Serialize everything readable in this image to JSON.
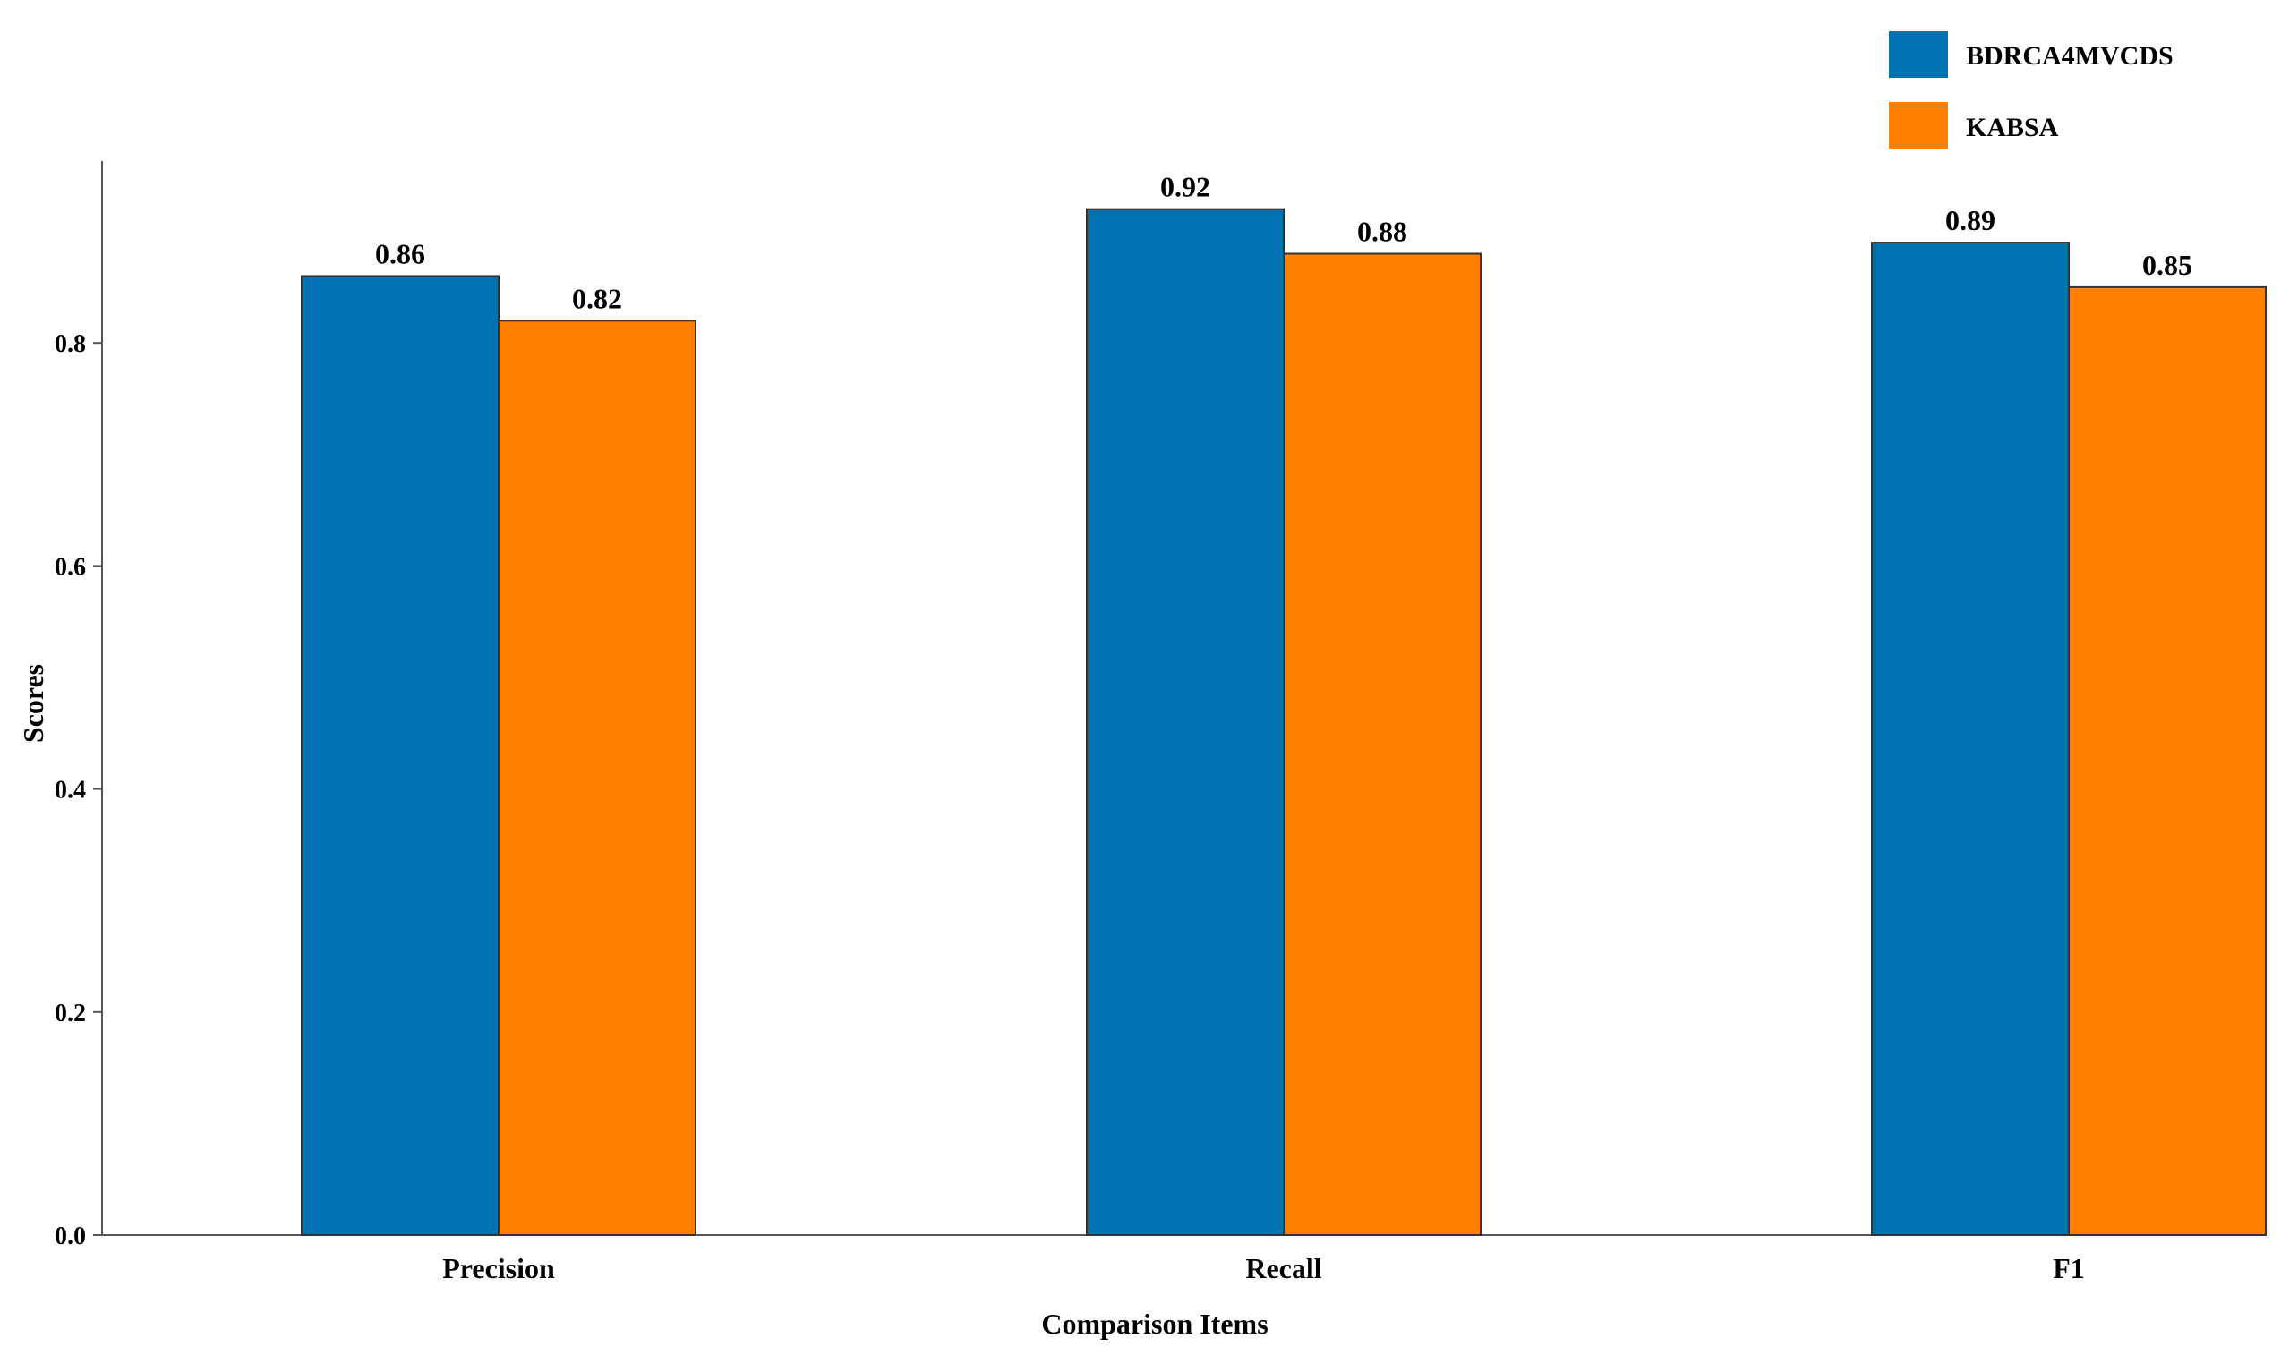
{
  "chart_data": {
    "type": "bar",
    "title": "",
    "xlabel": "Comparison Items",
    "ylabel": "Scores",
    "categories": [
      "Precision",
      "Recall",
      "F1"
    ],
    "series": [
      {
        "name": "BDRCA4MVCDS",
        "color": "#0072b2",
        "values": [
          0.86,
          0.92,
          0.89
        ],
        "labels": [
          "0.86",
          "0.92",
          "0.89"
        ]
      },
      {
        "name": "KABSA",
        "color": "#ff7f00",
        "values": [
          0.82,
          0.88,
          0.85
        ],
        "labels": [
          "0.82",
          "0.88",
          "0.85"
        ]
      }
    ],
    "ylim": [
      0,
      0.96
    ],
    "yticks": [
      "0.0",
      "0.2",
      "0.4",
      "0.6",
      "0.8"
    ],
    "ytick_values": [
      0.0,
      0.2,
      0.4,
      0.6,
      0.8
    ],
    "grid": false,
    "legend_position": "top-right"
  }
}
